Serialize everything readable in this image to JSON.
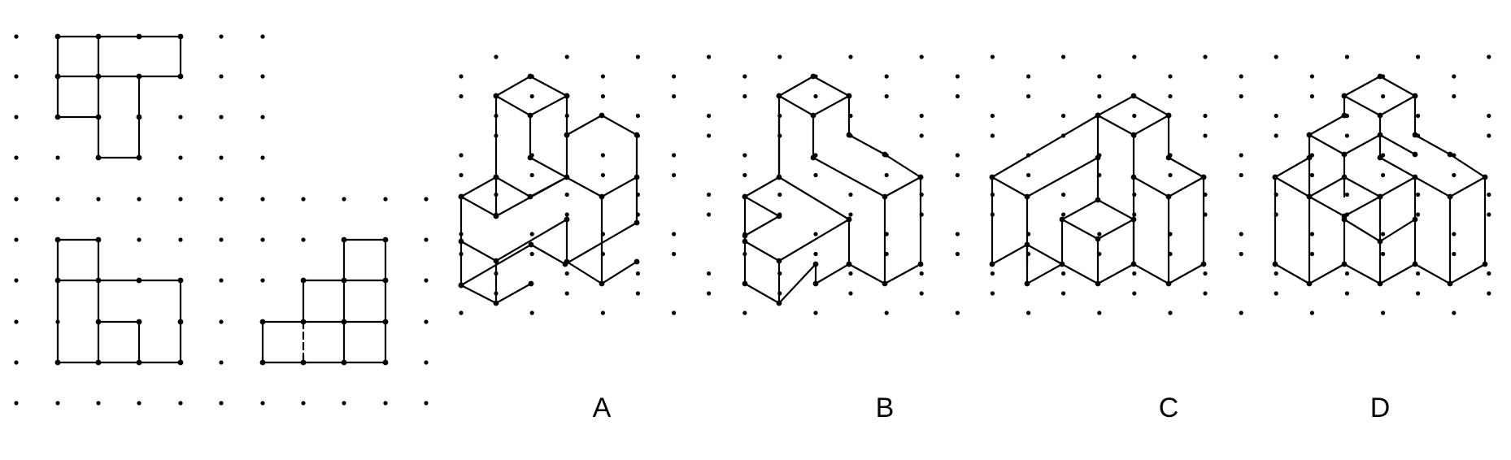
{
  "options": [
    {
      "id": "A",
      "label": "A"
    },
    {
      "id": "B",
      "label": "B"
    },
    {
      "id": "C",
      "label": "C"
    },
    {
      "id": "D",
      "label": "D"
    }
  ],
  "colors": {
    "line": "#000000",
    "dot": "#000000",
    "background": "#ffffff"
  }
}
